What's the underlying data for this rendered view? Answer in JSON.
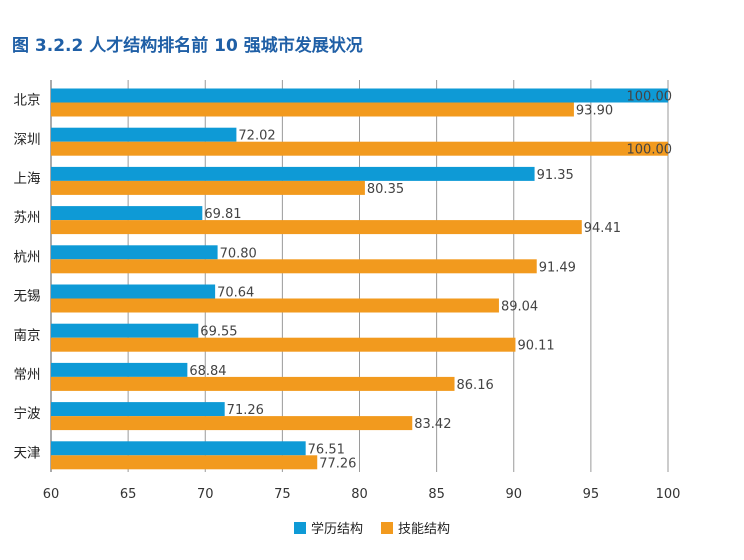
{
  "title": "图 3.2.2 人才结构排名前 10 强城市发展状况",
  "colors": {
    "series1": "#0e9ad6",
    "series2": "#f29a1e",
    "grid": "#9a9a9a",
    "axis": "#555555"
  },
  "chart_data": {
    "type": "bar",
    "orientation": "horizontal",
    "categories": [
      "北京",
      "深圳",
      "上海",
      "苏州",
      "杭州",
      "无锡",
      "南京",
      "常州",
      "宁波",
      "天津"
    ],
    "series": [
      {
        "name": "学历结构",
        "values": [
          100.0,
          72.02,
          91.35,
          69.81,
          70.8,
          70.64,
          69.55,
          68.84,
          71.26,
          76.51
        ]
      },
      {
        "name": "技能结构",
        "values": [
          93.9,
          100.0,
          80.35,
          94.41,
          91.49,
          89.04,
          90.11,
          86.16,
          83.42,
          77.26
        ]
      }
    ],
    "xlim": [
      60,
      100
    ],
    "xticks": [
      "60",
      "65",
      "70",
      "75",
      "80",
      "85",
      "90",
      "95",
      "100"
    ],
    "grid": "vertical",
    "legend": "bottom-center"
  }
}
